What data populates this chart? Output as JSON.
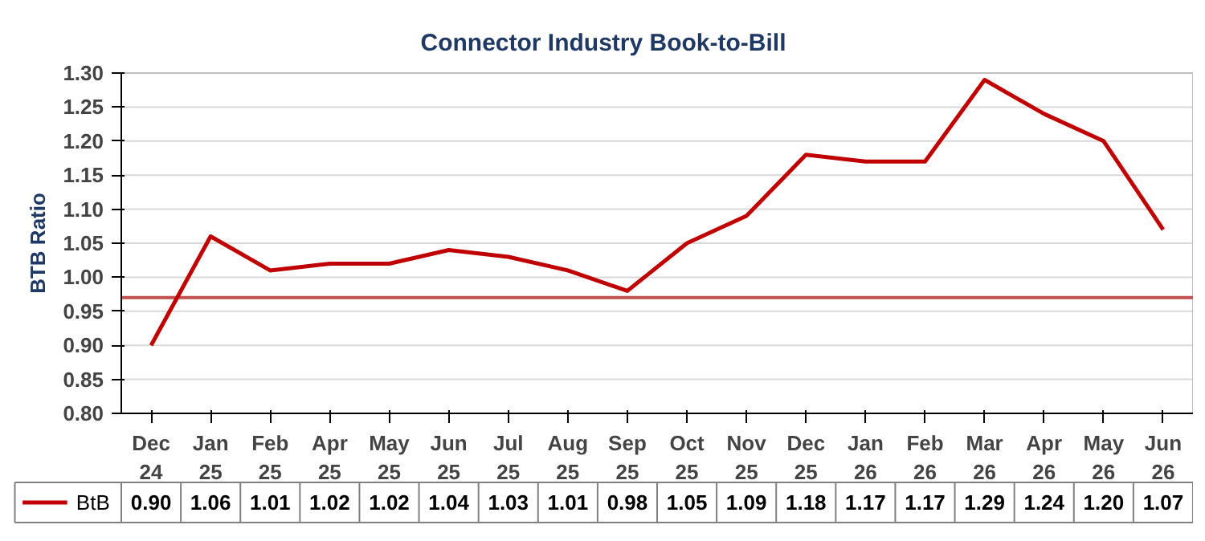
{
  "chart_data": {
    "type": "line",
    "title": "Connector Industry Book-to-Bill",
    "ylabel": "BTB Ratio",
    "categories": [
      "Dec 24",
      "Jan 25",
      "Feb 25",
      "Apr 25",
      "May 25",
      "Jun 25",
      "Jul 25",
      "Aug 25",
      "Sep 25",
      "Oct 25",
      "Nov 25",
      "Dec 25",
      "Jan 26",
      "Feb 26",
      "Mar 26",
      "Apr 26",
      "May 26",
      "Jun 26"
    ],
    "series": [
      {
        "name": "BtB",
        "color": "#c00000",
        "values": [
          0.9,
          1.06,
          1.01,
          1.02,
          1.02,
          1.04,
          1.03,
          1.01,
          0.98,
          1.05,
          1.09,
          1.18,
          1.17,
          1.17,
          1.29,
          1.24,
          1.2,
          1.07
        ],
        "value_labels": [
          "0.90",
          "1.06",
          "1.01",
          "1.02",
          "1.02",
          "1.04",
          "1.03",
          "1.01",
          "0.98",
          "1.05",
          "1.09",
          "1.18",
          "1.17",
          "1.17",
          "1.29",
          "1.24",
          "1.20",
          "1.07"
        ]
      }
    ],
    "ylim": [
      0.8,
      1.3
    ],
    "yticks": [
      {
        "value": 0.8,
        "label": "0.80"
      },
      {
        "value": 0.85,
        "label": "0.85"
      },
      {
        "value": 0.9,
        "label": "0.90"
      },
      {
        "value": 0.95,
        "label": "0.95"
      },
      {
        "value": 1.0,
        "label": "1.00"
      },
      {
        "value": 1.05,
        "label": "1.05"
      },
      {
        "value": 1.1,
        "label": "1.10"
      },
      {
        "value": 1.15,
        "label": "1.15"
      },
      {
        "value": 1.2,
        "label": "1.20"
      },
      {
        "value": 1.25,
        "label": "1.25"
      },
      {
        "value": 1.3,
        "label": "1.30"
      }
    ],
    "ref_lines": [
      {
        "axis": "y",
        "value": 0.97,
        "label": null,
        "color": "#c0504d"
      }
    ],
    "grid": "y",
    "legend": "bottom",
    "marker": "none",
    "line_style": "solid"
  }
}
